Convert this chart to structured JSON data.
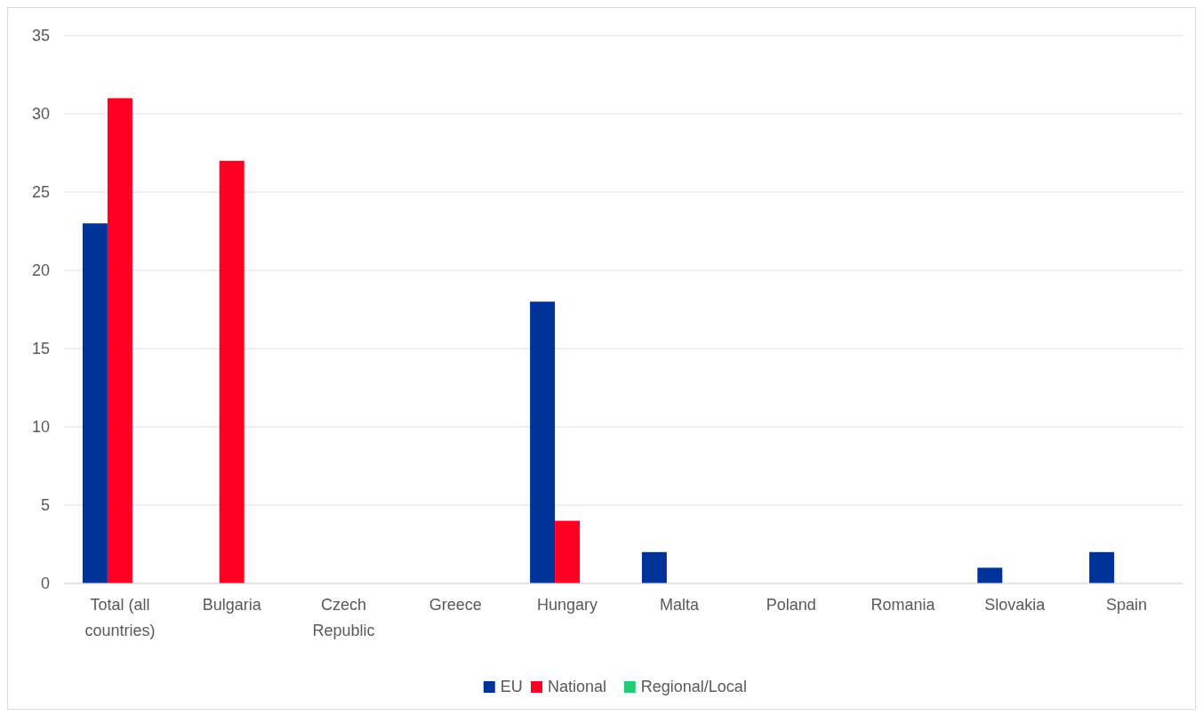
{
  "chart_data": {
    "type": "bar",
    "categories": [
      "Total (all countries)",
      "Bulgaria",
      "Czech Republic",
      "Greece",
      "Hungary",
      "Malta",
      "Poland",
      "Romania",
      "Slovakia",
      "Spain"
    ],
    "series": [
      {
        "name": "EU",
        "color": "#003399",
        "values": [
          23,
          0,
          0,
          0,
          18,
          2,
          0,
          0,
          1,
          2
        ]
      },
      {
        "name": "National",
        "color": "#ff0022",
        "values": [
          31,
          27,
          0,
          0,
          4,
          0,
          0,
          0,
          0,
          0
        ]
      },
      {
        "name": "Regional/Local",
        "color": "#22cc77",
        "values": [
          0,
          0,
          0,
          0,
          0,
          0,
          0,
          0,
          0,
          0
        ]
      }
    ],
    "ylim": [
      0,
      35
    ],
    "yticks": [
      0,
      5,
      10,
      15,
      20,
      25,
      30,
      35
    ],
    "grid": "y",
    "legend": "bottom"
  }
}
